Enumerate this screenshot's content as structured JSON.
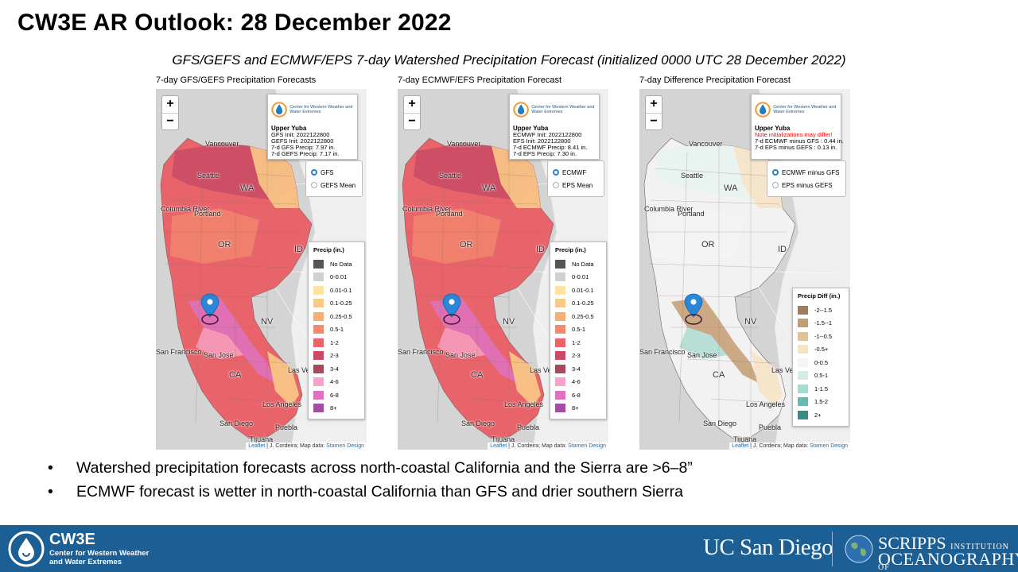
{
  "slide": {
    "title": "CW3E AR Outlook: 28 December 2022",
    "subtitle": "GFS/GEFS and ECMWF/EPS 7-day Watershed Precipitation Forecast (initialized 0000 UTC 28 December 2022)"
  },
  "panels": [
    {
      "title": "7-day GFS/GEFS Precipitation Forecasts",
      "info": {
        "watershed": "Upper Yuba",
        "line1": "GFS Init: 2022122800",
        "line2": "GEFS Init: 2022122800",
        "line3": "7-d GFS Precip: 7.97 in.",
        "line4": "7-d GEFS Precip: 7.17 in."
      },
      "options": [
        "GFS",
        "GEFS Mean"
      ],
      "legend_title": "Precip (in.)"
    },
    {
      "title": "7-day ECMWF/EFS Precipitation Forecast",
      "info": {
        "watershed": "Upper Yuba",
        "line1": "ECMWF Init: 2022122800",
        "line2": "EFS Init: 2022122800",
        "line3": "7-d ECMWF Precip: 8.41 in.",
        "line4": "7-d EPS Precip: 7.30 in."
      },
      "options": [
        "ECMWF",
        "EPS Mean"
      ],
      "legend_title": "Precip (in.)"
    },
    {
      "title": "7-day Difference Precipitation Forecast",
      "info": {
        "watershed": "Upper Yuba",
        "line1": "Note initializations may differ!",
        "line2": "7-d ECMWF minus GFS : 0.44 in.",
        "line3": "7-d EPS minus GEFS : 0.13 in."
      },
      "options": [
        "ECMWF minus GFS",
        "EPS minus GEFS"
      ],
      "legend_title": "Precip Diff (in.)"
    }
  ],
  "logo_text": "Center for Western Weather and Water Extremes",
  "zoom": {
    "plus": "+",
    "minus": "−"
  },
  "attribution": {
    "leaflet": "Leaflet",
    "text": " | J. Cordeira; Map data: ",
    "stamen": "Stamen Design"
  },
  "map_labels": {
    "vancouver": "Vancouver",
    "seattle": "Seattle",
    "wa": "WA",
    "columbia": "Columbia River",
    "portland": "Portland",
    "or": "OR",
    "id": "ID",
    "nv": "NV",
    "sf": "San Francisco",
    "sanjose": "San Jose",
    "ca": "CA",
    "lasvegas": "Las Vegas",
    "la": "Los Angeles",
    "sandiego": "San Diego",
    "tijuana": "Tijuana",
    "puebla": "Puebla"
  },
  "precip_legend": [
    {
      "label": "No Data",
      "color": "#555555"
    },
    {
      "label": "0-0.01",
      "color": "#d0d0d0"
    },
    {
      "label": "0.01-0.1",
      "color": "#fde4a0"
    },
    {
      "label": "0.1-0.25",
      "color": "#f9c987"
    },
    {
      "label": "0.25-0.5",
      "color": "#f6ae7a"
    },
    {
      "label": "0.5-1",
      "color": "#f28a6e"
    },
    {
      "label": "1-2",
      "color": "#e9646a"
    },
    {
      "label": "2-3",
      "color": "#c94a64"
    },
    {
      "label": "3-4",
      "color": "#a8485f"
    },
    {
      "label": "4-6",
      "color": "#f7a3c7"
    },
    {
      "label": "6-8",
      "color": "#dd72c0"
    },
    {
      "label": "8+",
      "color": "#a24ea3"
    }
  ],
  "diff_legend": [
    {
      "label": "-2--1.5",
      "color": "#a47c5a"
    },
    {
      "label": "-1.5--1",
      "color": "#c59c72"
    },
    {
      "label": "-1--0.5",
      "color": "#e2c196"
    },
    {
      "label": "-0.5+",
      "color": "#f6e3c6"
    },
    {
      "label": "0-0.5",
      "color": "#f5f5f5"
    },
    {
      "label": "0.5-1",
      "color": "#d4ece8"
    },
    {
      "label": "1-1.5",
      "color": "#a7dad1"
    },
    {
      "label": "1.5-2",
      "color": "#6ab8ad"
    },
    {
      "label": "2+",
      "color": "#378c83"
    }
  ],
  "bullets": [
    "Watershed precipitation forecasts across north-coastal California and the Sierra are >6–8”",
    "ECMWF forecast is wetter in north-coastal California than GFS and drier southern Sierra"
  ],
  "footer": {
    "cw3e": "CW3E",
    "cw3e_sub1": "Center for Western Weather",
    "cw3e_sub2": "and Water Extremes",
    "ucsd": "UC San Diego",
    "scripps": "SCRIPPS",
    "institution": "INSTITUTION OF",
    "oceanography": "OCEANOGRAPHY"
  },
  "colors": {
    "footer": "#1c5f95",
    "radio_on": "#2a7fd4",
    "warning": "#ff0000"
  }
}
